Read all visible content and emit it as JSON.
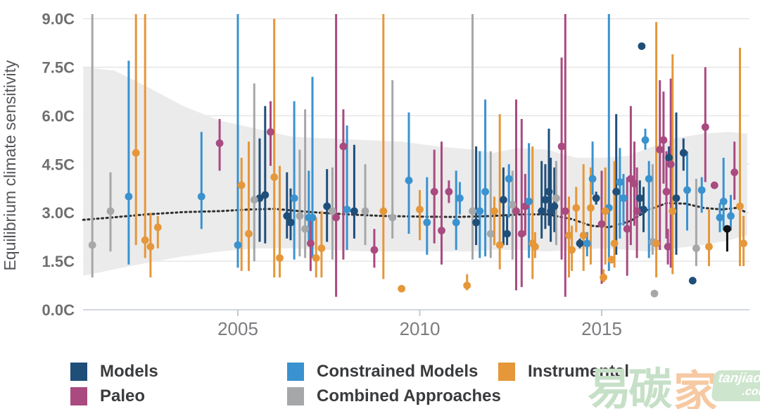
{
  "y_axis": {
    "title": "Equilibrium climate sensitivity",
    "tick_labels": [
      "0.0C",
      "1.5C",
      "3.0C",
      "4.5C",
      "6.0C",
      "7.5C",
      "9.0C"
    ],
    "tick_values": [
      0,
      1.5,
      3,
      4.5,
      6,
      7.5,
      9
    ]
  },
  "x_axis": {
    "tick_labels": [
      "2005",
      "2010",
      "2015"
    ],
    "tick_values": [
      2005,
      2010,
      2015
    ]
  },
  "legend": {
    "items": [
      {
        "label": "Models",
        "key": "models"
      },
      {
        "label": "Paleo",
        "key": "paleo"
      },
      {
        "label": "Constrained Models",
        "key": "constrained"
      },
      {
        "label": "Combined Approaches",
        "key": "combined"
      },
      {
        "label": "Instrumental",
        "key": "instrumental"
      }
    ]
  },
  "colors": {
    "models": "#1f4e79",
    "paleo": "#a94a80",
    "constrained": "#3a92cf",
    "combined": "#a6a7a9",
    "instrumental": "#e5973a",
    "special": "#111111",
    "band": "#ebebec",
    "grid": "#e4e4e6",
    "axis_line": "#c3c9d6",
    "trend": "#303030"
  },
  "watermark": {
    "text_green": "易碳",
    "text_orange": "家",
    "badge_line1": "tanjiaoyi",
    "badge_line2": ".com"
  },
  "chart_data": {
    "type": "scatter",
    "title": "",
    "xlabel": "",
    "ylabel": "Equilibrium climate sensitivity",
    "xlim": [
      2000.7,
      2019.1
    ],
    "ylim": [
      0,
      9.0
    ],
    "grid": true,
    "legend_position": "bottom",
    "band": {
      "name": "shaded uncertainty range",
      "points": [
        [
          2000.75,
          7.5,
          1.05
        ],
        [
          2001.6,
          7.4,
          1.25
        ],
        [
          2002.5,
          6.9,
          1.45
        ],
        [
          2003.5,
          6.3,
          1.65
        ],
        [
          2004.5,
          5.85,
          1.8
        ],
        [
          2005.5,
          5.6,
          1.9
        ],
        [
          2006.5,
          5.35,
          1.9
        ],
        [
          2007.5,
          5.3,
          1.85
        ],
        [
          2008.5,
          5.25,
          1.8
        ],
        [
          2009.5,
          5.2,
          1.8
        ],
        [
          2010.5,
          5.05,
          1.8
        ],
        [
          2011.5,
          4.95,
          1.8
        ],
        [
          2012.0,
          4.85,
          1.85
        ],
        [
          2012.7,
          5.0,
          1.85
        ],
        [
          2013.5,
          4.95,
          1.8
        ],
        [
          2014.3,
          4.7,
          1.85
        ],
        [
          2015.0,
          4.7,
          1.9
        ],
        [
          2015.7,
          4.75,
          1.85
        ],
        [
          2016.3,
          5.0,
          1.8
        ],
        [
          2017.0,
          5.3,
          1.9
        ],
        [
          2017.8,
          5.45,
          2.0
        ],
        [
          2018.5,
          5.5,
          2.15
        ],
        [
          2019.0,
          5.45,
          2.3
        ]
      ]
    },
    "trend": {
      "name": "dotted rolling-average line",
      "points": [
        [
          2000.75,
          2.78
        ],
        [
          2001.5,
          2.85
        ],
        [
          2002.5,
          2.95
        ],
        [
          2003.5,
          3.02
        ],
        [
          2004.5,
          3.05
        ],
        [
          2005.3,
          3.1
        ],
        [
          2006.0,
          3.12
        ],
        [
          2007.0,
          3.02
        ],
        [
          2008.0,
          2.95
        ],
        [
          2009.0,
          2.9
        ],
        [
          2010.0,
          2.88
        ],
        [
          2011.0,
          2.87
        ],
        [
          2012.0,
          2.9
        ],
        [
          2012.8,
          2.95
        ],
        [
          2013.5,
          2.95
        ],
        [
          2014.2,
          2.8
        ],
        [
          2014.7,
          2.6
        ],
        [
          2015.2,
          2.55
        ],
        [
          2015.8,
          2.75
        ],
        [
          2016.3,
          3.1
        ],
        [
          2016.8,
          3.3
        ],
        [
          2017.3,
          3.28
        ],
        [
          2017.8,
          3.15
        ],
        [
          2018.3,
          3.1
        ],
        [
          2018.7,
          3.15
        ],
        [
          2019.0,
          3.0
        ]
      ]
    },
    "point_format": "[year, best_estimate_C, range_low_C, range_high_C]",
    "series": [
      {
        "name": "Models",
        "key": "models",
        "points": [
          [
            2005.6,
            3.45,
            2.1,
            5.3
          ],
          [
            2005.75,
            3.55,
            2.05,
            6.3
          ],
          [
            2006.35,
            2.9,
            2.2,
            4.25
          ],
          [
            2006.45,
            2.7,
            2.15,
            3.75
          ],
          [
            2007.45,
            3.2,
            2.1,
            4.35
          ],
          [
            2008.2,
            3.05,
            2.2,
            5.1
          ],
          [
            2011.55,
            2.7,
            2.0,
            5.05
          ],
          [
            2012.3,
            3.4,
            2.0,
            4.4
          ],
          [
            2012.4,
            2.35,
            2.0,
            2.9
          ],
          [
            2013.35,
            3.05,
            2.2,
            4.6
          ],
          [
            2013.45,
            3.4,
            2.5,
            4.5
          ],
          [
            2013.55,
            3.65,
            2.6,
            5.6
          ],
          [
            2013.6,
            3.05,
            2.1,
            4.7
          ],
          [
            2013.7,
            3.2,
            2.4,
            4.4
          ],
          [
            2014.4,
            2.05,
            1.9,
            2.2
          ],
          [
            2014.85,
            3.45,
            3.25,
            3.65
          ],
          [
            2015.4,
            3.65,
            1.7,
            6.05
          ],
          [
            2016.05,
            3.45,
            2.9,
            4.0
          ],
          [
            2016.1,
            8.15,
            8.15,
            8.15
          ],
          [
            2016.15,
            3.1,
            2.4,
            3.8
          ],
          [
            2016.85,
            4.7,
            4.4,
            5.05
          ],
          [
            2017.05,
            3.45,
            1.7,
            6.1
          ],
          [
            2017.25,
            4.85,
            4.3,
            5.3
          ],
          [
            2017.5,
            0.9,
            0.9,
            0.9
          ]
        ]
      },
      {
        "name": "Paleo",
        "key": "paleo",
        "points": [
          [
            2004.5,
            5.15,
            4.3,
            5.9
          ],
          [
            2005.9,
            5.5,
            4.45,
            6.45
          ],
          [
            2007.0,
            2.05,
            1.2,
            2.95
          ],
          [
            2007.7,
            2.85,
            0.4,
            9.15
          ],
          [
            2007.9,
            5.05,
            1.55,
            6.2
          ],
          [
            2008.75,
            1.85,
            1.3,
            2.5
          ],
          [
            2010.4,
            3.65,
            2.05,
            4.95
          ],
          [
            2010.6,
            2.45,
            1.4,
            5.2
          ],
          [
            2010.8,
            3.65,
            3.3,
            4.0
          ],
          [
            2012.65,
            3.05,
            0.6,
            6.5
          ],
          [
            2012.8,
            2.35,
            0.7,
            5.9
          ],
          [
            2012.9,
            3.2,
            2.3,
            4.2
          ],
          [
            2013.9,
            5.05,
            1.55,
            7.8
          ],
          [
            2014.0,
            3.05,
            0.4,
            9.15
          ],
          [
            2015.0,
            2.65,
            0.8,
            4.3
          ],
          [
            2015.7,
            2.5,
            1.05,
            4.1
          ],
          [
            2015.8,
            4.05,
            2.0,
            6.3
          ],
          [
            2015.9,
            3.9,
            2.6,
            5.2
          ],
          [
            2015.97,
            3.05,
            1.6,
            4.4
          ],
          [
            2016.6,
            4.95,
            1.85,
            7.1
          ],
          [
            2016.7,
            5.25,
            3.9,
            6.75
          ],
          [
            2016.78,
            3.65,
            2.2,
            4.9
          ],
          [
            2016.82,
            1.95,
            1.4,
            2.5
          ],
          [
            2016.9,
            4.5,
            1.3,
            7.15
          ],
          [
            2017.85,
            5.65,
            3.95,
            7.5
          ],
          [
            2018.1,
            3.85,
            3.85,
            3.85
          ],
          [
            2018.65,
            4.25,
            3.4,
            5.2
          ]
        ]
      },
      {
        "name": "Constrained Models",
        "key": "constrained",
        "points": [
          [
            2002.0,
            3.5,
            1.4,
            7.7
          ],
          [
            2004.0,
            3.5,
            2.5,
            5.5
          ],
          [
            2005.0,
            2.0,
            1.3,
            9.15
          ],
          [
            2006.55,
            3.45,
            1.55,
            6.45
          ],
          [
            2006.95,
            2.85,
            2.0,
            4.3
          ],
          [
            2007.05,
            2.85,
            1.6,
            7.2
          ],
          [
            2008.0,
            3.1,
            1.85,
            5.7
          ],
          [
            2009.7,
            4.0,
            2.35,
            6.1
          ],
          [
            2010.2,
            2.7,
            1.7,
            4.1
          ],
          [
            2011.0,
            2.7,
            1.85,
            4.3
          ],
          [
            2011.1,
            3.45,
            2.95,
            3.95
          ],
          [
            2011.65,
            3.05,
            1.6,
            4.9
          ],
          [
            2011.8,
            3.65,
            1.65,
            6.5
          ],
          [
            2012.45,
            4.05,
            2.85,
            4.5
          ],
          [
            2013.0,
            3.35,
            1.6,
            5.15
          ],
          [
            2014.6,
            2.05,
            1.65,
            2.4
          ],
          [
            2014.75,
            4.05,
            3.55,
            5.2
          ],
          [
            2015.2,
            3.15,
            1.2,
            9.15
          ],
          [
            2015.5,
            3.95,
            2.2,
            5.0
          ],
          [
            2015.6,
            3.45,
            2.6,
            4.2
          ],
          [
            2016.2,
            5.25,
            4.95,
            5.6
          ],
          [
            2016.3,
            4.05,
            1.6,
            4.6
          ],
          [
            2017.35,
            3.7,
            2.45,
            4.9
          ],
          [
            2017.75,
            3.7,
            3.0,
            4.1
          ],
          [
            2018.25,
            2.85,
            2.4,
            3.3
          ],
          [
            2018.35,
            3.35,
            2.45,
            4.7
          ],
          [
            2018.55,
            2.9,
            2.45,
            3.55
          ]
        ]
      },
      {
        "name": "Combined Approaches",
        "key": "combined",
        "points": [
          [
            2001.0,
            2.0,
            1.0,
            9.15
          ],
          [
            2001.5,
            3.05,
            1.8,
            4.25
          ],
          [
            2005.45,
            3.4,
            1.5,
            7.0
          ],
          [
            2006.7,
            2.9,
            1.65,
            4.95
          ],
          [
            2006.85,
            2.5,
            1.6,
            6.2
          ],
          [
            2007.6,
            3.05,
            1.55,
            4.4
          ],
          [
            2008.5,
            3.05,
            2.0,
            4.5
          ],
          [
            2009.25,
            2.85,
            2.2,
            7.1
          ],
          [
            2011.45,
            3.05,
            1.55,
            9.15
          ],
          [
            2011.95,
            2.35,
            1.6,
            4.9
          ],
          [
            2012.55,
            3.25,
            1.55,
            4.3
          ],
          [
            2013.75,
            3.45,
            2.0,
            4.6
          ],
          [
            2016.4,
            2.1,
            1.7,
            4.5
          ],
          [
            2016.45,
            0.5,
            0.5,
            0.5
          ],
          [
            2017.6,
            1.9,
            1.35,
            4.05
          ]
        ]
      },
      {
        "name": "Instrumental",
        "key": "instrumental",
        "points": [
          [
            2002.2,
            4.85,
            2.0,
            9.15
          ],
          [
            2002.45,
            2.15,
            1.6,
            9.15
          ],
          [
            2002.6,
            1.95,
            1.0,
            3.0
          ],
          [
            2002.8,
            2.55,
            1.9,
            2.9
          ],
          [
            2005.1,
            3.85,
            1.2,
            4.7
          ],
          [
            2005.3,
            2.35,
            1.2,
            5.2
          ],
          [
            2006.0,
            4.1,
            1.0,
            9.0
          ],
          [
            2006.15,
            1.6,
            1.0,
            4.45
          ],
          [
            2007.15,
            1.6,
            1.0,
            2.85
          ],
          [
            2007.3,
            1.9,
            1.0,
            3.05
          ],
          [
            2009.0,
            3.05,
            0.95,
            9.15
          ],
          [
            2009.5,
            0.65,
            0.65,
            0.65
          ],
          [
            2010.0,
            3.1,
            2.15,
            3.7
          ],
          [
            2011.3,
            0.75,
            0.6,
            1.1
          ],
          [
            2012.05,
            3.05,
            2.0,
            3.5
          ],
          [
            2012.2,
            2.0,
            1.25,
            6.05
          ],
          [
            2013.1,
            2.05,
            0.95,
            5.05
          ],
          [
            2013.17,
            1.95,
            1.6,
            2.4
          ],
          [
            2014.1,
            2.3,
            1.0,
            3.5
          ],
          [
            2014.18,
            1.85,
            1.2,
            2.6
          ],
          [
            2014.3,
            3.15,
            2.4,
            3.8
          ],
          [
            2014.5,
            2.3,
            1.2,
            4.5
          ],
          [
            2014.7,
            3.15,
            1.4,
            4.4
          ],
          [
            2015.05,
            1.0,
            0.85,
            1.25
          ],
          [
            2015.1,
            3.05,
            1.4,
            4.4
          ],
          [
            2015.27,
            1.55,
            1.55,
            1.55
          ],
          [
            2015.35,
            2.05,
            1.3,
            4.6
          ],
          [
            2016.5,
            2.05,
            1.0,
            8.9
          ],
          [
            2016.95,
            3.05,
            1.1,
            7.9
          ],
          [
            2017.95,
            1.95,
            1.35,
            3.1
          ],
          [
            2018.8,
            3.2,
            1.35,
            8.1
          ],
          [
            2018.9,
            2.05,
            1.35,
            2.9
          ]
        ]
      },
      {
        "name": "Special (black)",
        "key": "special",
        "points": [
          [
            2018.45,
            2.5,
            1.8,
            2.5
          ]
        ]
      }
    ]
  }
}
